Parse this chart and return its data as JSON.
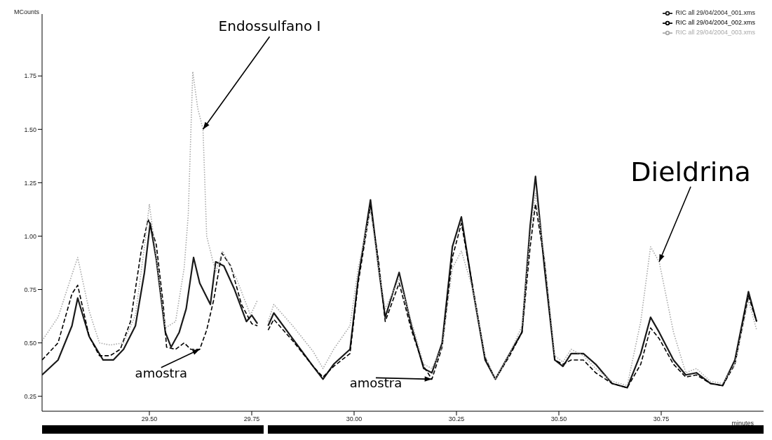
{
  "chart_data": {
    "type": "line",
    "xlabel": "minutes",
    "ylabel": "MCounts",
    "xlim": [
      29.238,
      31.0
    ],
    "ylim": [
      0.18,
      2.04
    ],
    "xticks": [
      {
        "value": 29.5,
        "label": "29.50"
      },
      {
        "value": 29.75,
        "label": "29.75"
      },
      {
        "value": 30.0,
        "label": "30.00"
      },
      {
        "value": 30.25,
        "label": "30.25"
      },
      {
        "value": 30.5,
        "label": "30.50"
      },
      {
        "value": 30.75,
        "label": "30.75"
      }
    ],
    "yticks": [
      {
        "value": 0.25,
        "label": "0.25"
      },
      {
        "value": 0.5,
        "label": "0.50"
      },
      {
        "value": 0.75,
        "label": "0.75"
      },
      {
        "value": 1.0,
        "label": "1.00"
      },
      {
        "value": 1.25,
        "label": "1.25"
      },
      {
        "value": 1.5,
        "label": "1.50"
      },
      {
        "value": 1.75,
        "label": "1.75"
      }
    ],
    "grid": false,
    "legend": "top right",
    "series": [
      {
        "name": "RIC all 29/04/2004_001.xms",
        "color": "#1a1a1a",
        "line_style": "solid",
        "x": [
          29.238,
          29.277,
          29.311,
          29.325,
          29.353,
          29.387,
          29.412,
          29.437,
          29.466,
          29.488,
          29.502,
          29.517,
          29.539,
          29.553,
          29.573,
          29.59,
          29.608,
          29.623,
          29.649,
          29.662,
          29.682,
          29.708,
          29.737,
          29.75,
          29.764,
          29.777,
          29.79,
          29.804,
          29.85,
          29.9,
          29.924,
          29.95,
          29.99,
          30.01,
          30.04,
          30.06,
          30.076,
          30.11,
          30.14,
          30.17,
          30.19,
          30.215,
          30.24,
          30.262,
          30.29,
          30.32,
          30.345,
          30.38,
          30.41,
          30.43,
          30.443,
          30.465,
          30.49,
          30.51,
          30.53,
          30.56,
          30.59,
          30.63,
          30.667,
          30.7,
          30.724,
          30.745,
          30.78,
          30.81,
          30.836,
          30.87,
          30.9,
          30.93,
          30.963,
          30.983
        ],
        "values": [
          0.35,
          0.42,
          0.58,
          0.71,
          0.53,
          0.42,
          0.42,
          0.47,
          0.58,
          0.83,
          1.06,
          0.89,
          0.55,
          0.48,
          0.55,
          0.66,
          0.9,
          0.78,
          0.68,
          0.88,
          0.86,
          0.75,
          0.6,
          0.63,
          0.59,
          null,
          0.58,
          0.64,
          0.52,
          0.39,
          0.33,
          0.4,
          0.47,
          0.8,
          1.17,
          0.85,
          0.62,
          0.83,
          0.58,
          0.38,
          0.36,
          0.5,
          0.95,
          1.09,
          0.75,
          0.42,
          0.33,
          0.45,
          0.55,
          1.05,
          1.28,
          0.85,
          0.42,
          0.39,
          0.45,
          0.45,
          0.4,
          0.31,
          0.29,
          0.45,
          0.62,
          0.55,
          0.42,
          0.35,
          0.36,
          0.31,
          0.3,
          0.42,
          0.74,
          0.6
        ]
      },
      {
        "name": "RIC all 29/04/2004_002.xms",
        "color": "#000000",
        "line_style": "dashed",
        "x": [
          29.238,
          29.277,
          29.311,
          29.325,
          29.353,
          29.378,
          29.404,
          29.429,
          29.454,
          29.48,
          29.497,
          29.517,
          29.534,
          29.542,
          29.564,
          29.585,
          29.601,
          29.623,
          29.64,
          29.657,
          29.677,
          29.699,
          29.725,
          29.75,
          29.764,
          29.777,
          29.79,
          29.804,
          29.85,
          29.9,
          29.924,
          29.95,
          29.99,
          30.01,
          30.04,
          30.06,
          30.076,
          30.11,
          30.14,
          30.17,
          30.19,
          30.215,
          30.24,
          30.262,
          30.29,
          30.32,
          30.345,
          30.38,
          30.41,
          30.43,
          30.443,
          30.465,
          30.49,
          30.51,
          30.53,
          30.56,
          30.59,
          30.63,
          30.667,
          30.7,
          30.724,
          30.745,
          30.78,
          30.81,
          30.836,
          30.87,
          30.9,
          30.93,
          30.963,
          30.983
        ],
        "values": [
          0.42,
          0.5,
          0.73,
          0.77,
          0.53,
          0.44,
          0.44,
          0.47,
          0.6,
          0.93,
          1.08,
          0.96,
          0.68,
          0.48,
          0.47,
          0.5,
          0.47,
          0.47,
          0.56,
          0.7,
          0.92,
          0.86,
          0.68,
          0.59,
          0.58,
          null,
          0.56,
          0.61,
          0.51,
          0.39,
          0.34,
          0.39,
          0.45,
          0.78,
          1.14,
          0.88,
          0.6,
          0.78,
          0.56,
          0.39,
          0.33,
          0.48,
          0.9,
          1.06,
          0.76,
          0.43,
          0.33,
          0.44,
          0.55,
          0.95,
          1.15,
          0.88,
          0.42,
          0.4,
          0.42,
          0.42,
          0.36,
          0.31,
          0.29,
          0.4,
          0.57,
          0.52,
          0.4,
          0.34,
          0.35,
          0.31,
          0.3,
          0.4,
          0.72,
          0.6
        ]
      },
      {
        "name": "RIC all 29/04/2004_003.xms",
        "color": "#a8a8a8",
        "line_style": "dotted",
        "x": [
          29.238,
          29.277,
          29.311,
          29.325,
          29.353,
          29.378,
          29.404,
          29.437,
          29.466,
          29.488,
          29.5,
          29.517,
          29.539,
          29.564,
          29.585,
          29.595,
          29.606,
          29.618,
          29.631,
          29.64,
          29.662,
          29.679,
          29.713,
          29.747,
          29.764,
          29.777,
          29.79,
          29.804,
          29.85,
          29.9,
          29.924,
          29.95,
          29.99,
          30.01,
          30.04,
          30.06,
          30.076,
          30.11,
          30.14,
          30.17,
          30.19,
          30.215,
          30.24,
          30.262,
          30.29,
          30.32,
          30.345,
          30.38,
          30.41,
          30.43,
          30.443,
          30.465,
          30.49,
          30.51,
          30.53,
          30.56,
          30.59,
          30.63,
          30.667,
          30.7,
          30.724,
          30.745,
          30.78,
          30.81,
          30.836,
          30.87,
          30.9,
          30.93,
          30.963,
          30.983
        ],
        "values": [
          0.51,
          0.62,
          0.82,
          0.9,
          0.65,
          0.5,
          0.49,
          0.5,
          0.63,
          0.95,
          1.15,
          0.9,
          0.57,
          0.6,
          0.85,
          1.1,
          1.77,
          1.6,
          1.5,
          1.0,
          0.83,
          0.93,
          0.8,
          0.63,
          0.7,
          null,
          0.6,
          0.68,
          0.58,
          0.46,
          0.38,
          0.47,
          0.58,
          0.85,
          1.12,
          0.85,
          0.66,
          0.8,
          0.6,
          0.4,
          0.38,
          0.48,
          0.85,
          0.93,
          0.75,
          0.44,
          0.33,
          0.45,
          0.58,
          1.0,
          1.2,
          0.9,
          0.44,
          0.41,
          0.47,
          0.44,
          0.38,
          0.32,
          0.3,
          0.6,
          0.95,
          0.88,
          0.55,
          0.36,
          0.38,
          0.32,
          0.31,
          0.4,
          0.7,
          0.56
        ]
      }
    ],
    "annotations": [
      {
        "text": "Endossulfano I",
        "x": 29.631,
        "y": 1.5
      },
      {
        "text": "amostra",
        "x": 29.623,
        "y": 0.47
      },
      {
        "text": "amostra",
        "x": 30.19,
        "y": 0.33
      },
      {
        "text": "Dieldrina",
        "x": 30.745,
        "y": 0.88
      }
    ]
  }
}
